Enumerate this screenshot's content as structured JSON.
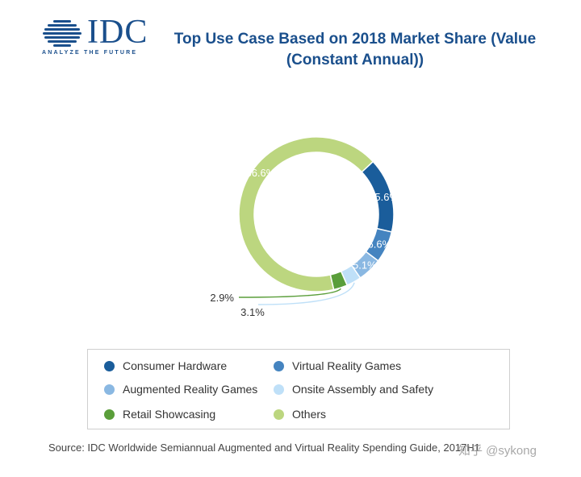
{
  "logo": {
    "text": "IDC",
    "tagline": "ANALYZE THE FUTURE",
    "color": "#1a4f8c"
  },
  "chart_data": {
    "type": "pie",
    "title_line1": "Top Use Case Based on 2018 Market Share (Value",
    "title_line2": "(Constant Annual))",
    "categories": [
      "Consumer Hardware",
      "Virtual Reality Games",
      "Augmented Reality Games",
      "Onsite Assembly and Safety",
      "Retail Showcasing",
      "Others"
    ],
    "values": [
      15.6,
      6.6,
      5.1,
      3.1,
      2.9,
      66.6
    ],
    "labels": [
      "15.6%",
      "6.6%",
      "5.1%",
      "3.1%",
      "2.9%",
      "66.6%"
    ],
    "colors": [
      "#1a5d9b",
      "#4584c0",
      "#8ab8e2",
      "#bfe0f8",
      "#5a9e3a",
      "#bcd67f"
    ],
    "legend_position": "bottom"
  },
  "source": "Source: IDC Worldwide Semiannual Augmented and Virtual Reality Spending Guide, 2017H1",
  "watermark": "知乎 @sykong"
}
